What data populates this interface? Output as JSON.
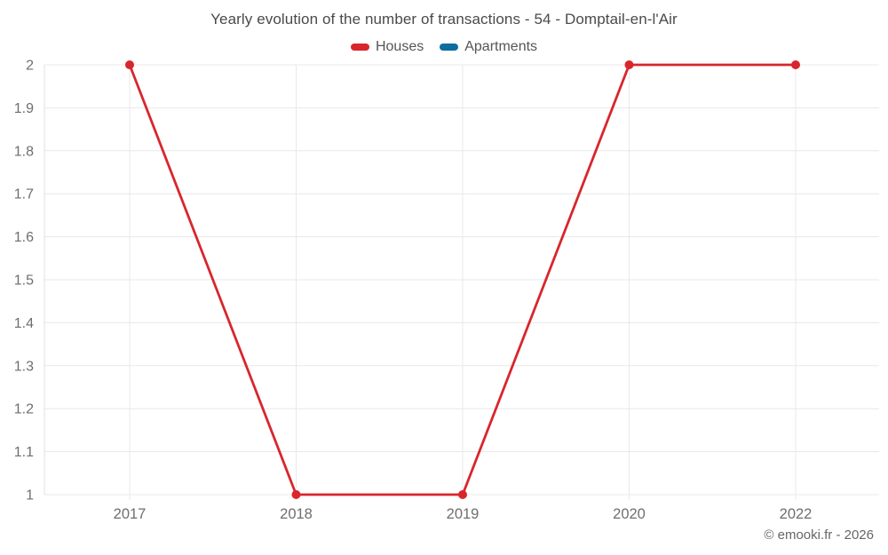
{
  "title": "Yearly evolution of the number of transactions - 54 - Domptail-en-l'Air",
  "legend": {
    "items": [
      {
        "label": "Houses",
        "color": "#d8262c"
      },
      {
        "label": "Apartments",
        "color": "#0c6e9e"
      }
    ]
  },
  "footer": {
    "copyright": "© emooki.fr - 2026"
  },
  "colors": {
    "grid": "#e8e8e8",
    "axis": "#e0e0e0",
    "tick_label": "#6e6e6e"
  },
  "chart_data": {
    "type": "line",
    "title": "Yearly evolution of the number of transactions - 54 - Domptail-en-l'Air",
    "categories": [
      "2017",
      "2018",
      "2019",
      "2020",
      "2022"
    ],
    "series": [
      {
        "name": "Houses",
        "color": "#d8262c",
        "values": [
          2,
          1,
          1,
          2,
          2
        ]
      },
      {
        "name": "Apartments",
        "color": "#0c6e9e",
        "values": []
      }
    ],
    "xlabel": "",
    "ylabel": "",
    "ylim": [
      1,
      2
    ],
    "yticks": [
      1,
      1.1,
      1.2,
      1.3,
      1.4,
      1.5,
      1.6,
      1.7,
      1.8,
      1.9,
      2
    ],
    "ytick_labels": [
      "1",
      "1.1",
      "1.2",
      "1.3",
      "1.4",
      "1.5",
      "1.6",
      "1.7",
      "1.8",
      "1.9",
      "2"
    ],
    "grid": true,
    "legend_position": "top",
    "marker": "circle"
  }
}
